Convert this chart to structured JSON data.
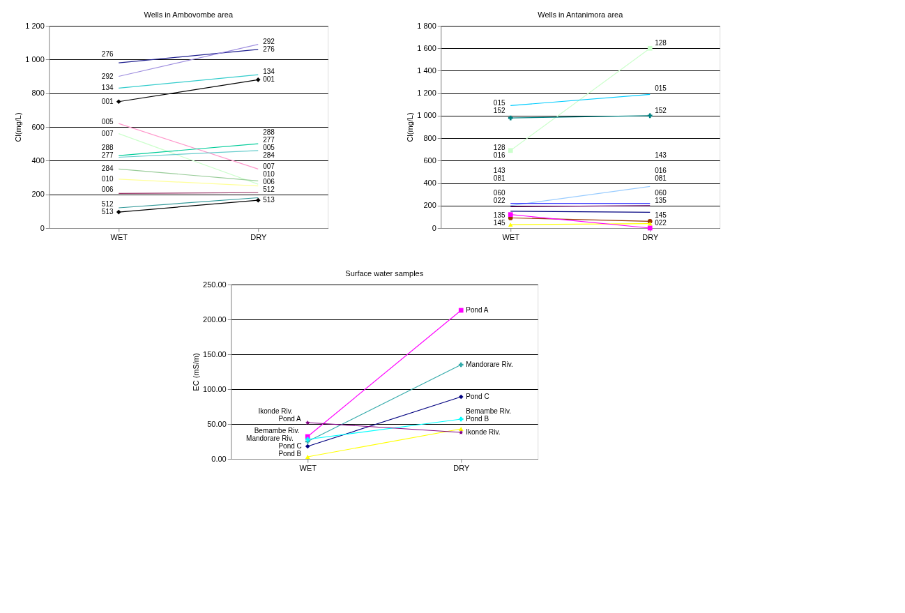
{
  "chart_data": [
    {
      "type": "line",
      "title": "Wells in Ambovombe area",
      "ylabel": "Cl(mg/L)",
      "categories": [
        "WET",
        "DRY"
      ],
      "ylim": [
        0,
        1200
      ],
      "yticks": [
        0,
        200,
        400,
        600,
        800,
        {
          "value": 1000,
          "label": "1 000"
        },
        {
          "value": 1200,
          "label": "1 200"
        }
      ],
      "grid": "y",
      "series": [
        {
          "name": "276",
          "color": "#1f1f8f",
          "marker": "none",
          "values": [
            980,
            1060
          ]
        },
        {
          "name": "292",
          "color": "#9f8fdf",
          "marker": "none",
          "values": [
            900,
            1090
          ]
        },
        {
          "name": "134",
          "color": "#33cccc",
          "marker": "none",
          "values": [
            830,
            910
          ]
        },
        {
          "name": "001",
          "color": "#000000",
          "marker": "diamond",
          "values": [
            750,
            880
          ]
        },
        {
          "name": "005",
          "color": "#ff99cc",
          "marker": "none",
          "values": [
            620,
            350
          ]
        },
        {
          "name": "007",
          "color": "#ccffcc",
          "marker": "none",
          "values": [
            560,
            260
          ]
        },
        {
          "name": "288",
          "color": "#00cc99",
          "marker": "none",
          "values": [
            430,
            500
          ]
        },
        {
          "name": "277",
          "color": "#66cccc",
          "marker": "none",
          "values": [
            420,
            460
          ]
        },
        {
          "name": "284",
          "color": "#99cc99",
          "marker": "none",
          "values": [
            350,
            280
          ]
        },
        {
          "name": "010",
          "color": "#ffff99",
          "marker": "none",
          "values": [
            290,
            250
          ]
        },
        {
          "name": "006",
          "color": "#993366",
          "marker": "none",
          "values": [
            205,
            210
          ]
        },
        {
          "name": "512",
          "color": "#339999",
          "marker": "none",
          "values": [
            120,
            180
          ]
        },
        {
          "name": "513",
          "color": "#000000",
          "marker": "diamond",
          "values": [
            95,
            165
          ]
        }
      ]
    },
    {
      "type": "line",
      "title": "Wells in Antanimora area",
      "ylabel": "Cl(mg/L)",
      "categories": [
        "WET",
        "DRY"
      ],
      "ylim": [
        0,
        1800
      ],
      "yticks": [
        0,
        200,
        400,
        600,
        800,
        {
          "value": 1000,
          "label": "1 000"
        },
        {
          "value": 1200,
          "label": "1 200"
        },
        {
          "value": 1400,
          "label": "1 400"
        },
        {
          "value": 1600,
          "label": "1 600"
        },
        {
          "value": 1800,
          "label": "1 800"
        }
      ],
      "grid": "y",
      "series": [
        {
          "name": "128",
          "color": "#ccffcc",
          "marker": "square",
          "values": [
            690,
            1600
          ]
        },
        {
          "name": "015",
          "color": "#00ccff",
          "marker": "none",
          "values": [
            1090,
            1190
          ]
        },
        {
          "name": "152",
          "color": "#008080",
          "marker": "cross",
          "values": [
            980,
            1000
          ]
        },
        {
          "name": "143",
          "color": "#99ccff",
          "marker": "none",
          "values": [
            200,
            370
          ]
        },
        {
          "name": "016",
          "color": "#3333ff",
          "marker": "none",
          "values": [
            220,
            220
          ]
        },
        {
          "name": "081",
          "color": "#660066",
          "marker": "none",
          "values": [
            190,
            200
          ]
        },
        {
          "name": "060",
          "color": "#000080",
          "marker": "none",
          "values": [
            150,
            140
          ]
        },
        {
          "name": "135",
          "color": "#993300",
          "marker": "circle",
          "values": [
            90,
            60
          ]
        },
        {
          "name": "145",
          "color": "#ffff00",
          "marker": "triangle",
          "values": [
            30,
            40
          ]
        },
        {
          "name": "022",
          "color": "#ff00ff",
          "marker": "square",
          "values": [
            120,
            0
          ]
        }
      ]
    },
    {
      "type": "line",
      "title": "Surface water samples",
      "ylabel": "EC (mS/m)",
      "categories": [
        "WET",
        "DRY"
      ],
      "ylim": [
        0,
        250
      ],
      "yticks": [
        {
          "value": 0,
          "label": "0.00"
        },
        {
          "value": 50,
          "label": "50.00"
        },
        {
          "value": 100,
          "label": "100.00"
        },
        {
          "value": 150,
          "label": "150.00"
        },
        {
          "value": 200,
          "label": "200.00"
        },
        {
          "value": 250,
          "label": "250.00"
        }
      ],
      "grid": "y",
      "series": [
        {
          "name": "Pond A",
          "color": "#ff00ff",
          "marker": "square",
          "values": [
            32,
            213
          ]
        },
        {
          "name": "Mandorare Riv.",
          "color": "#33aaaa",
          "marker": "cross",
          "values": [
            25,
            135
          ]
        },
        {
          "name": "Pond C",
          "color": "#000080",
          "marker": "diamond",
          "values": [
            18,
            89
          ]
        },
        {
          "name": "Bemambe Riv.",
          "color": "#00ffff",
          "marker": "cross",
          "values": [
            28,
            57
          ]
        },
        {
          "name": "Pond B",
          "color": "#ffff00",
          "marker": "triangle",
          "values": [
            3,
            43
          ]
        },
        {
          "name": "Ikonde Riv.",
          "color": "#800080",
          "marker": "star",
          "values": [
            52,
            38
          ]
        }
      ]
    }
  ]
}
